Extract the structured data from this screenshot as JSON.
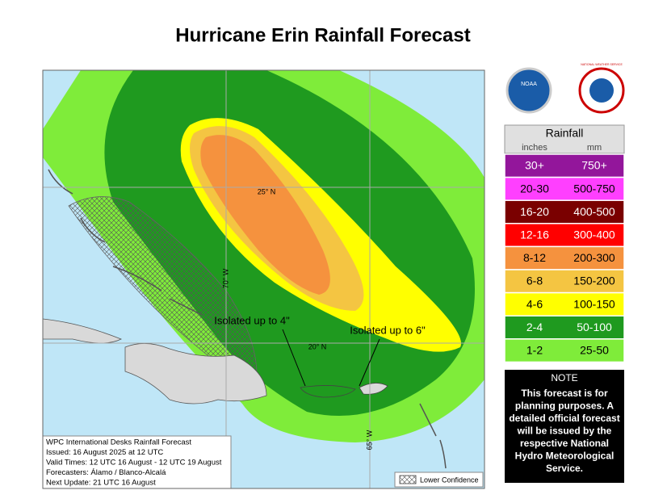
{
  "title": "Hurricane Erin Rainfall Forecast",
  "logos": {
    "noaa": "NOAA",
    "nws": "NATIONAL WEATHER SERVICE"
  },
  "map": {
    "grid_labels": [
      "25° N",
      "70° W",
      "20° N",
      "65° W"
    ],
    "annotations": [
      "Isolated up to 4\"",
      "Isolated up to 6\""
    ],
    "info": [
      "WPC International Desks Rainfall Forecast",
      "Issued: 16 August 2025 at 12 UTC",
      "Valid Times: 12 UTC 16 August - 12 UTC 19 August",
      "Forecasters: Álamo / Blanco-Alcalá",
      "Next Update: 21 UTC 16 August"
    ],
    "lower_confidence": "Lower Confidence"
  },
  "legend": {
    "title": "Rainfall",
    "units": [
      "inches",
      "mm"
    ],
    "rows": [
      {
        "inches": "30+",
        "mm": "750+",
        "color": "#93169b"
      },
      {
        "inches": "20-30",
        "mm": "500-750",
        "color": "#ff3fff"
      },
      {
        "inches": "16-20",
        "mm": "400-500",
        "color": "#7a0000"
      },
      {
        "inches": "12-16",
        "mm": "300-400",
        "color": "#ff0000"
      },
      {
        "inches": "8-12",
        "mm": "200-300",
        "color": "#f5923e"
      },
      {
        "inches": "6-8",
        "mm": "150-200",
        "color": "#f4c542"
      },
      {
        "inches": "4-6",
        "mm": "100-150",
        "color": "#ffff00"
      },
      {
        "inches": "2-4",
        "mm": "50-100",
        "color": "#1f9a1f"
      },
      {
        "inches": "1-2",
        "mm": "25-50",
        "color": "#7fec3a"
      }
    ]
  },
  "note": {
    "title": "NOTE",
    "lines": [
      "This forecast is for",
      "planning purposes. A",
      "detailed official forecast",
      "will be issued by the",
      "respective National",
      "Hydro Meteorological",
      "Service."
    ]
  }
}
